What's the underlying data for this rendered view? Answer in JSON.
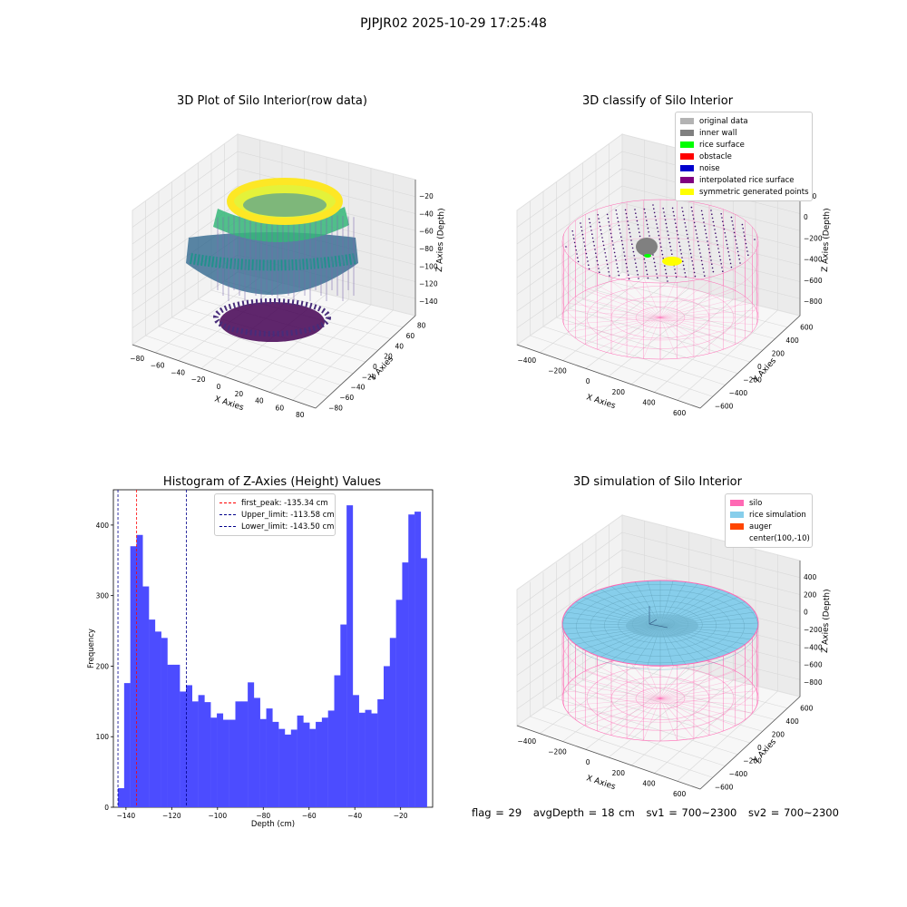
{
  "suptitle": "PJPJR02 2025-10-29 17:25:48",
  "colors": {
    "hist_bar": "#4c4cff",
    "first_peak": "#ff0000",
    "limit": "#00008b",
    "silo": "#ff69b4",
    "rice": "#87ceeb",
    "auger": "#ff4500",
    "original": "#b3b3b3",
    "inner_wall": "#808080",
    "rice_surface": "#00ff00",
    "obstacle": "#ff0000",
    "noise": "#0000cd",
    "interp": "#800080",
    "symmetric": "#ffff00"
  },
  "chart_data": [
    {
      "type": "scatter",
      "projection": "3d",
      "title": "3D Plot of Silo Interior(row data)",
      "xlabel": "X Axies",
      "ylabel": "Y Axies",
      "zlabel": "Z Axies (Depth)",
      "xticks": [
        "−80",
        "−60",
        "−40",
        "−20",
        "0",
        "20",
        "40",
        "60",
        "80"
      ],
      "yticks": [
        "−80",
        "−60",
        "−40",
        "−20",
        "0",
        "20",
        "40",
        "60",
        "80"
      ],
      "zticks": [
        "−20",
        "−40",
        "−60",
        "−80",
        "−100",
        "−120",
        "−140"
      ],
      "xlim": [
        -90,
        90
      ],
      "ylim": [
        -90,
        90
      ],
      "zlim": [
        -150,
        -10
      ],
      "colormap": "viridis"
    },
    {
      "type": "scatter",
      "projection": "3d",
      "title": "3D classify of Silo Interior",
      "xlabel": "X Axies",
      "ylabel": "Y Axies",
      "zlabel": "Z Axies (Depth)",
      "xticks": [
        "−400",
        "−200",
        "0",
        "200",
        "400",
        "600"
      ],
      "yticks": [
        "−600",
        "−400",
        "−200",
        "0",
        "200",
        "400",
        "600"
      ],
      "zticks": [
        "200",
        "0",
        "−200",
        "−400",
        "−600",
        "−800"
      ],
      "legend": [
        {
          "label": "original data",
          "color": "#b3b3b3"
        },
        {
          "label": "inner wall",
          "color": "#808080"
        },
        {
          "label": "rice surface",
          "color": "#00ff00"
        },
        {
          "label": "obstacle",
          "color": "#ff0000"
        },
        {
          "label": "noise",
          "color": "#0000cd"
        },
        {
          "label": "interpolated rice surface",
          "color": "#800080"
        },
        {
          "label": "symmetric generated points",
          "color": "#ffff00"
        }
      ],
      "legend_position": "upper right"
    },
    {
      "type": "bar",
      "title": "Histogram of Z-Axies (Height) Values",
      "xlabel": "Depth (cm)",
      "ylabel": "Frequency",
      "xlim": [
        -145.5,
        -6
      ],
      "ylim": [
        0,
        450
      ],
      "xticks": [
        -140,
        -120,
        -100,
        -80,
        -60,
        -40,
        -20
      ],
      "yticks": [
        0,
        100,
        200,
        300,
        400
      ],
      "bin_start": -143.5,
      "bin_width": 2.7,
      "values": [
        27,
        176,
        370,
        386,
        313,
        266,
        249,
        240,
        202,
        202,
        164,
        173,
        150,
        159,
        149,
        127,
        133,
        124,
        124,
        150,
        150,
        177,
        155,
        125,
        140,
        121,
        111,
        103,
        110,
        130,
        120,
        111,
        121,
        127,
        137,
        187,
        259,
        428,
        159,
        134,
        138,
        133,
        153,
        200,
        240,
        294,
        347,
        415,
        419,
        353
      ],
      "vlines": [
        {
          "label": "first_peak: -135.34 cm",
          "x": -135.34,
          "color": "#ff0000"
        },
        {
          "label": "Upper_limit: -113.58 cm",
          "x": -113.58,
          "color": "#00008b"
        },
        {
          "label": "Lower_limit: -143.50 cm",
          "x": -143.5,
          "color": "#00008b"
        }
      ],
      "legend_position": "upper center"
    },
    {
      "type": "surface",
      "projection": "3d",
      "title": "3D simulation of Silo Interior",
      "xlabel": "X Axies",
      "ylabel": "Y Axies",
      "zlabel": "Z Axies (Depth)",
      "xticks": [
        "−400",
        "−200",
        "0",
        "200",
        "400",
        "600"
      ],
      "yticks": [
        "−600",
        "−400",
        "−200",
        "0",
        "200",
        "400",
        "600"
      ],
      "zticks": [
        "400",
        "200",
        "0",
        "−200",
        "−400",
        "−600",
        "−800"
      ],
      "legend": [
        {
          "label": "silo",
          "color": "#ff69b4"
        },
        {
          "label": "rice simulation",
          "color": "#87ceeb"
        },
        {
          "label": "auger",
          "color": "#ff4500"
        },
        {
          "label": "center(100,-10)",
          "color": ""
        }
      ],
      "legend_position": "upper right"
    }
  ],
  "footer": {
    "flag": "flag = 29",
    "avg": "avgDepth = 18 cm",
    "sv1": "sv1 = 700~2300",
    "sv2": "sv2 = 700~2300"
  }
}
